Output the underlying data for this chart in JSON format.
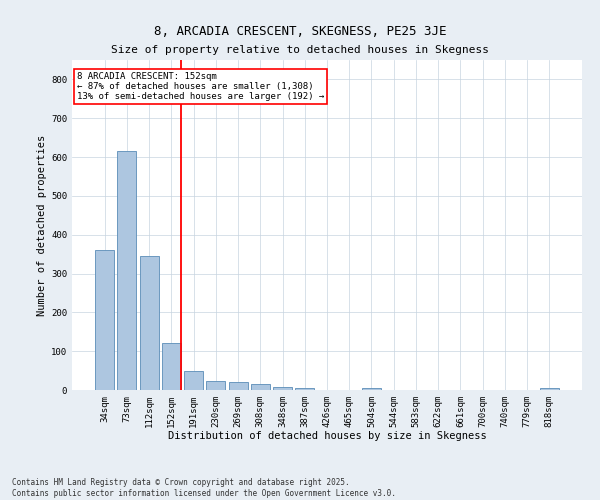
{
  "title": "8, ARCADIA CRESCENT, SKEGNESS, PE25 3JE",
  "subtitle": "Size of property relative to detached houses in Skegness",
  "xlabel": "Distribution of detached houses by size in Skegness",
  "ylabel": "Number of detached properties",
  "categories": [
    "34sqm",
    "73sqm",
    "112sqm",
    "152sqm",
    "191sqm",
    "230sqm",
    "269sqm",
    "308sqm",
    "348sqm",
    "387sqm",
    "426sqm",
    "465sqm",
    "504sqm",
    "544sqm",
    "583sqm",
    "622sqm",
    "661sqm",
    "700sqm",
    "740sqm",
    "779sqm",
    "818sqm"
  ],
  "values": [
    360,
    615,
    345,
    120,
    50,
    22,
    20,
    15,
    7,
    5,
    0,
    0,
    5,
    0,
    0,
    0,
    0,
    0,
    0,
    0,
    5
  ],
  "bar_color": "#adc6e0",
  "bar_edge_color": "#5b8db8",
  "vline_color": "red",
  "vline_index": 3,
  "annotation_title": "8 ARCADIA CRESCENT: 152sqm",
  "annotation_line1": "← 87% of detached houses are smaller (1,308)",
  "annotation_line2": "13% of semi-detached houses are larger (192) →",
  "annotation_box_color": "white",
  "annotation_box_edge_color": "red",
  "ylim": [
    0,
    850
  ],
  "yticks": [
    0,
    100,
    200,
    300,
    400,
    500,
    600,
    700,
    800
  ],
  "footer1": "Contains HM Land Registry data © Crown copyright and database right 2025.",
  "footer2": "Contains public sector information licensed under the Open Government Licence v3.0.",
  "background_color": "#e8eef4",
  "plot_background_color": "#ffffff",
  "grid_color": "#c8d4e0",
  "title_fontsize": 9,
  "subtitle_fontsize": 8,
  "axis_label_fontsize": 7.5,
  "tick_fontsize": 6.5,
  "annotation_fontsize": 6.5,
  "footer_fontsize": 5.5
}
